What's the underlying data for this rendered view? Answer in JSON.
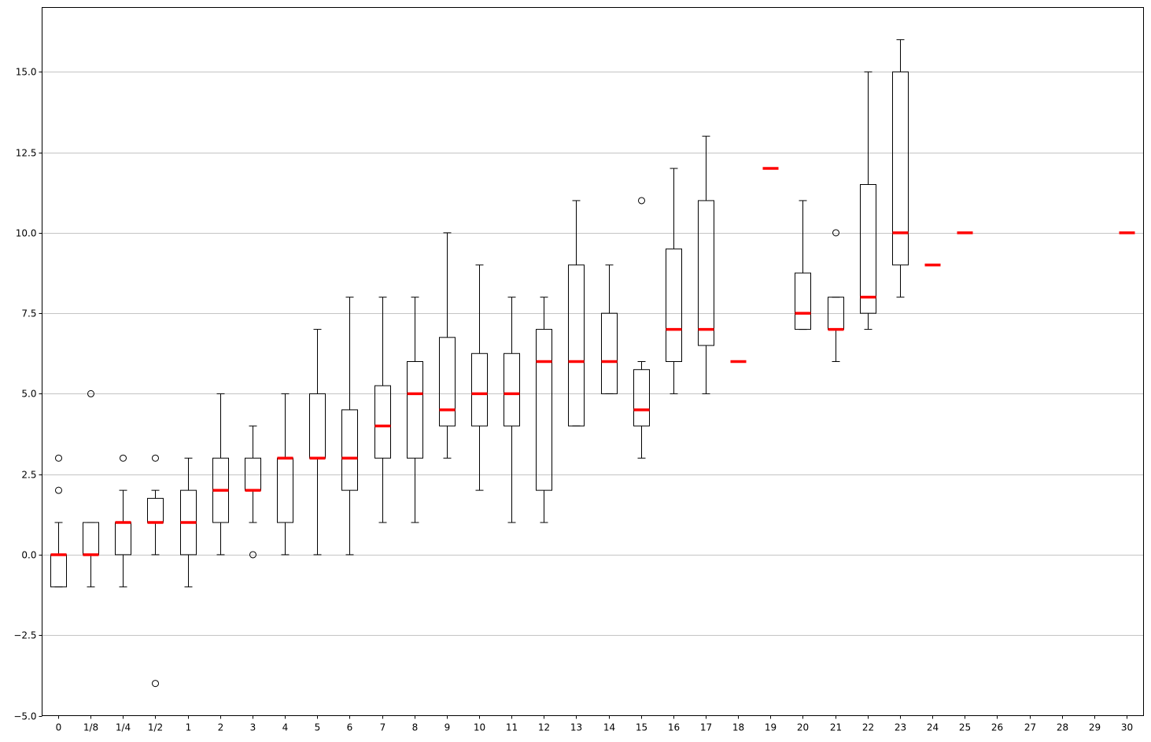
{
  "chart_data": {
    "type": "box",
    "title": "",
    "xlabel": "",
    "ylabel": "",
    "ylim": [
      -5,
      17
    ],
    "y_ticks": [
      -5.0,
      -2.5,
      0.0,
      2.5,
      5.0,
      7.5,
      10.0,
      12.5,
      15.0
    ],
    "y_tick_labels": [
      "−5.0",
      "−2.5",
      "0.0",
      "2.5",
      "5.0",
      "7.5",
      "10.0",
      "12.5",
      "15.0"
    ],
    "grid": "horizontal",
    "median_color": "#ff0000",
    "box_color": "#000000",
    "categories": [
      "0",
      "1/8",
      "1/4",
      "1/2",
      "1",
      "2",
      "3",
      "4",
      "5",
      "6",
      "7",
      "8",
      "9",
      "10",
      "11",
      "12",
      "13",
      "14",
      "15",
      "16",
      "17",
      "18",
      "19",
      "20",
      "21",
      "22",
      "23",
      "24",
      "25",
      "26",
      "27",
      "28",
      "29",
      "30"
    ],
    "boxes": [
      {
        "category": "0",
        "whislo": -1,
        "q1": -1,
        "med": 0,
        "q3": 0,
        "whishi": 1,
        "fliers": [
          2,
          3
        ]
      },
      {
        "category": "1/8",
        "whislo": -1,
        "q1": 0,
        "med": 0,
        "q3": 1,
        "whishi": 1,
        "fliers": [
          5
        ]
      },
      {
        "category": "1/4",
        "whislo": -1,
        "q1": 0,
        "med": 1,
        "q3": 1,
        "whishi": 2,
        "fliers": [
          3
        ]
      },
      {
        "category": "1/2",
        "whislo": 0,
        "q1": 1,
        "med": 1,
        "q3": 1.75,
        "whishi": 2,
        "fliers": [
          3,
          -4
        ]
      },
      {
        "category": "1",
        "whislo": -1,
        "q1": 0,
        "med": 1,
        "q3": 2,
        "whishi": 3,
        "fliers": []
      },
      {
        "category": "2",
        "whislo": 0,
        "q1": 1,
        "med": 2,
        "q3": 3,
        "whishi": 5,
        "fliers": []
      },
      {
        "category": "3",
        "whislo": 1,
        "q1": 2,
        "med": 2,
        "q3": 3,
        "whishi": 4,
        "fliers": [
          0
        ]
      },
      {
        "category": "4",
        "whislo": 0,
        "q1": 1,
        "med": 3,
        "q3": 3,
        "whishi": 5,
        "fliers": []
      },
      {
        "category": "5",
        "whislo": 0,
        "q1": 3,
        "med": 3,
        "q3": 5,
        "whishi": 7,
        "fliers": []
      },
      {
        "category": "6",
        "whislo": 0,
        "q1": 2,
        "med": 3,
        "q3": 4.5,
        "whishi": 8,
        "fliers": []
      },
      {
        "category": "7",
        "whislo": 1,
        "q1": 3,
        "med": 4,
        "q3": 5.25,
        "whishi": 8,
        "fliers": []
      },
      {
        "category": "8",
        "whislo": 1,
        "q1": 3,
        "med": 5,
        "q3": 6,
        "whishi": 8,
        "fliers": []
      },
      {
        "category": "9",
        "whislo": 3,
        "q1": 4,
        "med": 4.5,
        "q3": 6.75,
        "whishi": 10,
        "fliers": []
      },
      {
        "category": "10",
        "whislo": 2,
        "q1": 4,
        "med": 5,
        "q3": 6.25,
        "whishi": 9,
        "fliers": []
      },
      {
        "category": "11",
        "whislo": 1,
        "q1": 4,
        "med": 5,
        "q3": 6.25,
        "whishi": 8,
        "fliers": []
      },
      {
        "category": "12",
        "whislo": 1,
        "q1": 2,
        "med": 6,
        "q3": 7,
        "whishi": 8,
        "fliers": []
      },
      {
        "category": "13",
        "whislo": 4,
        "q1": 4,
        "med": 6,
        "q3": 9,
        "whishi": 11,
        "fliers": []
      },
      {
        "category": "14",
        "whislo": 5,
        "q1": 5,
        "med": 6,
        "q3": 7.5,
        "whishi": 9,
        "fliers": []
      },
      {
        "category": "15",
        "whislo": 3,
        "q1": 4,
        "med": 4.5,
        "q3": 5.75,
        "whishi": 6,
        "fliers": [
          11
        ]
      },
      {
        "category": "16",
        "whislo": 5,
        "q1": 6,
        "med": 7,
        "q3": 9.5,
        "whishi": 12,
        "fliers": []
      },
      {
        "category": "17",
        "whislo": 5,
        "q1": 6.5,
        "med": 7,
        "q3": 11,
        "whishi": 13,
        "fliers": []
      },
      {
        "category": "18",
        "whislo": 6,
        "q1": 6,
        "med": 6,
        "q3": 6,
        "whishi": 6,
        "fliers": []
      },
      {
        "category": "19",
        "whislo": 12,
        "q1": 12,
        "med": 12,
        "q3": 12,
        "whishi": 12,
        "fliers": []
      },
      {
        "category": "20",
        "whislo": 7,
        "q1": 7,
        "med": 7.5,
        "q3": 8.75,
        "whishi": 11,
        "fliers": []
      },
      {
        "category": "21",
        "whislo": 6,
        "q1": 7,
        "med": 7,
        "q3": 8,
        "whishi": 8,
        "fliers": [
          10
        ]
      },
      {
        "category": "22",
        "whislo": 7,
        "q1": 7.5,
        "med": 8,
        "q3": 11.5,
        "whishi": 15,
        "fliers": []
      },
      {
        "category": "23",
        "whislo": 8,
        "q1": 9,
        "med": 10,
        "q3": 15,
        "whishi": 16,
        "fliers": []
      },
      {
        "category": "24",
        "whislo": 9,
        "q1": 9,
        "med": 9,
        "q3": 9,
        "whishi": 9,
        "fliers": []
      },
      {
        "category": "25",
        "whislo": 10,
        "q1": 10,
        "med": 10,
        "q3": 10,
        "whishi": 10,
        "fliers": []
      },
      {
        "category": "30",
        "whislo": 10,
        "q1": 10,
        "med": 10,
        "q3": 10,
        "whishi": 10,
        "fliers": []
      }
    ]
  }
}
